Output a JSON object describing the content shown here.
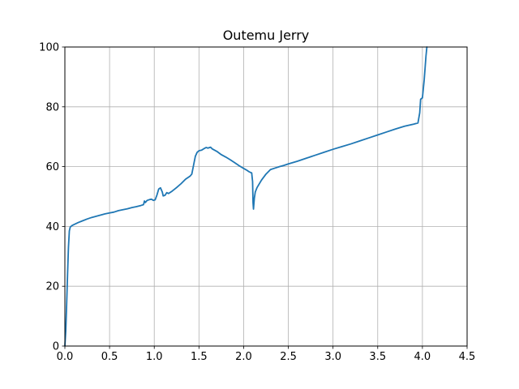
{
  "chart_data": {
    "type": "line",
    "title": "Outemu Jerry",
    "xlabel": "",
    "ylabel": "",
    "xlim": [
      0,
      4.5
    ],
    "ylim": [
      0,
      100
    ],
    "grid": true,
    "x_ticks": [
      0.0,
      0.5,
      1.0,
      1.5,
      2.0,
      2.5,
      3.0,
      3.5,
      4.0,
      4.5
    ],
    "x_tick_labels": [
      "0.0",
      "0.5",
      "1.0",
      "1.5",
      "2.0",
      "2.5",
      "3.0",
      "3.5",
      "4.0",
      "4.5"
    ],
    "y_ticks": [
      0,
      20,
      40,
      60,
      80,
      100
    ],
    "y_tick_labels": [
      "0",
      "20",
      "40",
      "60",
      "80",
      "100"
    ],
    "line_color": "#1f77b4",
    "series": [
      {
        "points": [
          [
            0.0,
            0.0
          ],
          [
            0.01,
            5.0
          ],
          [
            0.02,
            14.0
          ],
          [
            0.03,
            24.0
          ],
          [
            0.04,
            33.0
          ],
          [
            0.05,
            38.5
          ],
          [
            0.06,
            39.8
          ],
          [
            0.08,
            40.3
          ],
          [
            0.1,
            40.6
          ],
          [
            0.15,
            41.3
          ],
          [
            0.2,
            41.9
          ],
          [
            0.25,
            42.5
          ],
          [
            0.3,
            43.0
          ],
          [
            0.35,
            43.4
          ],
          [
            0.4,
            43.8
          ],
          [
            0.45,
            44.2
          ],
          [
            0.5,
            44.5
          ],
          [
            0.55,
            44.8
          ],
          [
            0.6,
            45.3
          ],
          [
            0.65,
            45.6
          ],
          [
            0.7,
            45.9
          ],
          [
            0.75,
            46.3
          ],
          [
            0.8,
            46.6
          ],
          [
            0.85,
            47.0
          ],
          [
            0.88,
            47.3
          ],
          [
            0.89,
            48.5
          ],
          [
            0.9,
            48.0
          ],
          [
            0.92,
            48.7
          ],
          [
            0.95,
            49.0
          ],
          [
            0.97,
            49.1
          ],
          [
            0.99,
            48.7
          ],
          [
            1.01,
            48.9
          ],
          [
            1.03,
            50.5
          ],
          [
            1.05,
            52.5
          ],
          [
            1.07,
            52.9
          ],
          [
            1.09,
            51.5
          ],
          [
            1.1,
            50.2
          ],
          [
            1.12,
            50.4
          ],
          [
            1.14,
            51.3
          ],
          [
            1.16,
            51.0
          ],
          [
            1.2,
            51.8
          ],
          [
            1.25,
            53.0
          ],
          [
            1.3,
            54.3
          ],
          [
            1.35,
            55.8
          ],
          [
            1.4,
            56.8
          ],
          [
            1.42,
            57.5
          ],
          [
            1.44,
            60.5
          ],
          [
            1.46,
            63.5
          ],
          [
            1.48,
            64.8
          ],
          [
            1.5,
            65.3
          ],
          [
            1.53,
            65.5
          ],
          [
            1.55,
            65.9
          ],
          [
            1.58,
            66.4
          ],
          [
            1.6,
            66.2
          ],
          [
            1.63,
            66.5
          ],
          [
            1.65,
            65.9
          ],
          [
            1.7,
            65.1
          ],
          [
            1.75,
            64.0
          ],
          [
            1.8,
            63.2
          ],
          [
            1.85,
            62.3
          ],
          [
            1.9,
            61.3
          ],
          [
            1.95,
            60.3
          ],
          [
            2.0,
            59.4
          ],
          [
            2.03,
            58.9
          ],
          [
            2.06,
            58.3
          ],
          [
            2.08,
            58.0
          ],
          [
            2.09,
            57.9
          ],
          [
            2.1,
            55.0
          ],
          [
            2.105,
            48.0
          ],
          [
            2.11,
            45.8
          ],
          [
            2.12,
            49.5
          ],
          [
            2.13,
            51.5
          ],
          [
            2.15,
            53.0
          ],
          [
            2.2,
            55.5
          ],
          [
            2.25,
            57.5
          ],
          [
            2.3,
            59.0
          ],
          [
            2.35,
            59.5
          ],
          [
            2.4,
            60.0
          ],
          [
            2.45,
            60.4
          ],
          [
            2.5,
            60.9
          ],
          [
            2.6,
            61.8
          ],
          [
            2.7,
            62.8
          ],
          [
            2.8,
            63.8
          ],
          [
            2.9,
            64.8
          ],
          [
            3.0,
            65.8
          ],
          [
            3.1,
            66.7
          ],
          [
            3.2,
            67.6
          ],
          [
            3.3,
            68.6
          ],
          [
            3.4,
            69.6
          ],
          [
            3.5,
            70.6
          ],
          [
            3.6,
            71.6
          ],
          [
            3.7,
            72.6
          ],
          [
            3.8,
            73.5
          ],
          [
            3.9,
            74.2
          ],
          [
            3.95,
            74.6
          ],
          [
            3.97,
            78.0
          ],
          [
            3.98,
            82.5
          ],
          [
            3.99,
            82.8
          ],
          [
            4.0,
            83.0
          ],
          [
            4.02,
            89.0
          ],
          [
            4.03,
            93.0
          ],
          [
            4.04,
            97.0
          ],
          [
            4.05,
            100.0
          ]
        ]
      }
    ]
  }
}
